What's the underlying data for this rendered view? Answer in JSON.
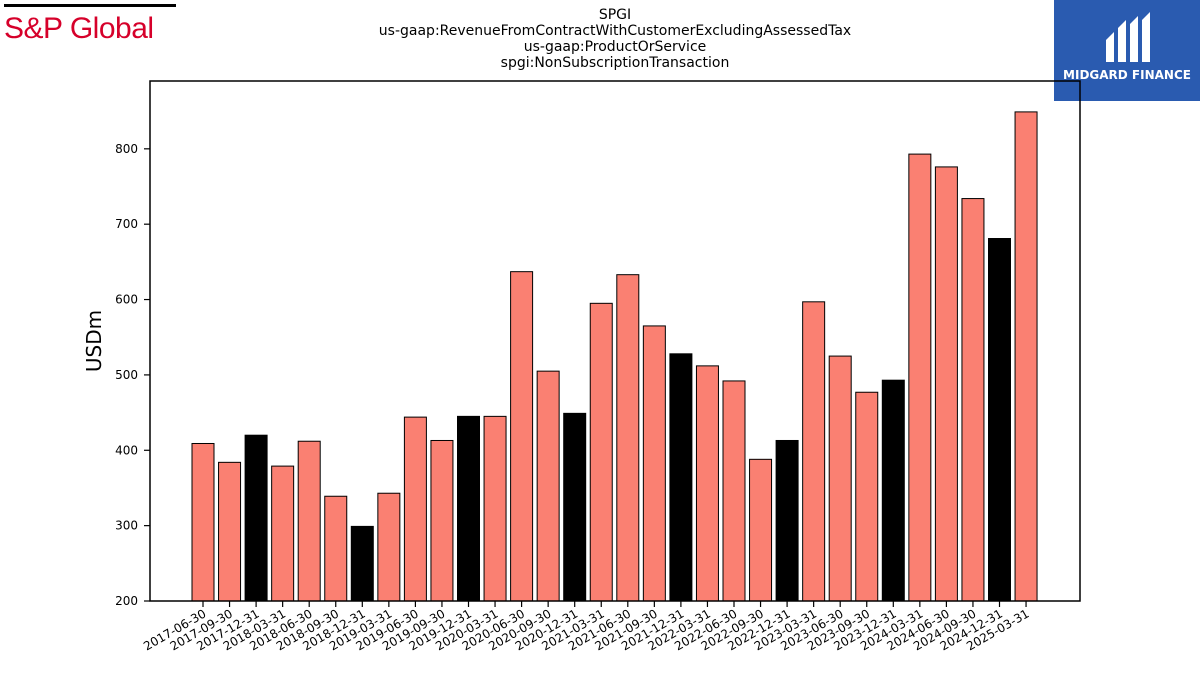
{
  "brand": {
    "left_logo": "S&P Global",
    "right_logo": "MIDGARD FINANCE"
  },
  "titles": {
    "line1": "SPGI",
    "line2": "us-gaap:RevenueFromContractWithCustomerExcludingAssessedTax",
    "line3": "us-gaap:ProductOrService",
    "line4": "spgi:NonSubscriptionTransaction"
  },
  "colors": {
    "quarter_bar": "#fa8072",
    "year_end_bar": "#000000",
    "logo_red": "#d6002a",
    "logo_blue": "#2a5bb0"
  },
  "chart_data": {
    "type": "bar",
    "ylabel": "USDm",
    "ylim": [
      200,
      890
    ],
    "yticks": [
      200,
      300,
      400,
      500,
      600,
      700,
      800
    ],
    "categories": [
      "2017-06-30",
      "2017-09-30",
      "2017-12-31",
      "2018-03-31",
      "2018-06-30",
      "2018-09-30",
      "2018-12-31",
      "2019-03-31",
      "2019-06-30",
      "2019-09-30",
      "2019-12-31",
      "2020-03-31",
      "2020-06-30",
      "2020-09-30",
      "2020-12-31",
      "2021-03-31",
      "2021-06-30",
      "2021-09-30",
      "2021-12-31",
      "2022-03-31",
      "2022-06-30",
      "2022-09-30",
      "2022-12-31",
      "2023-03-31",
      "2023-06-30",
      "2023-09-30",
      "2023-12-31",
      "2024-03-31",
      "2024-06-30",
      "2024-09-30",
      "2024-12-31",
      "2025-03-31"
    ],
    "values": [
      409,
      384,
      420,
      379,
      412,
      339,
      299,
      343,
      444,
      413,
      445,
      445,
      637,
      505,
      449,
      595,
      633,
      565,
      528,
      512,
      492,
      388,
      413,
      597,
      525,
      477,
      493,
      793,
      776,
      734,
      681,
      849
    ],
    "year_end": [
      false,
      false,
      true,
      false,
      false,
      false,
      true,
      false,
      false,
      false,
      true,
      false,
      false,
      false,
      true,
      false,
      false,
      false,
      true,
      false,
      false,
      false,
      true,
      false,
      false,
      false,
      true,
      false,
      false,
      false,
      true,
      false
    ],
    "grid": false,
    "legend": "none"
  }
}
